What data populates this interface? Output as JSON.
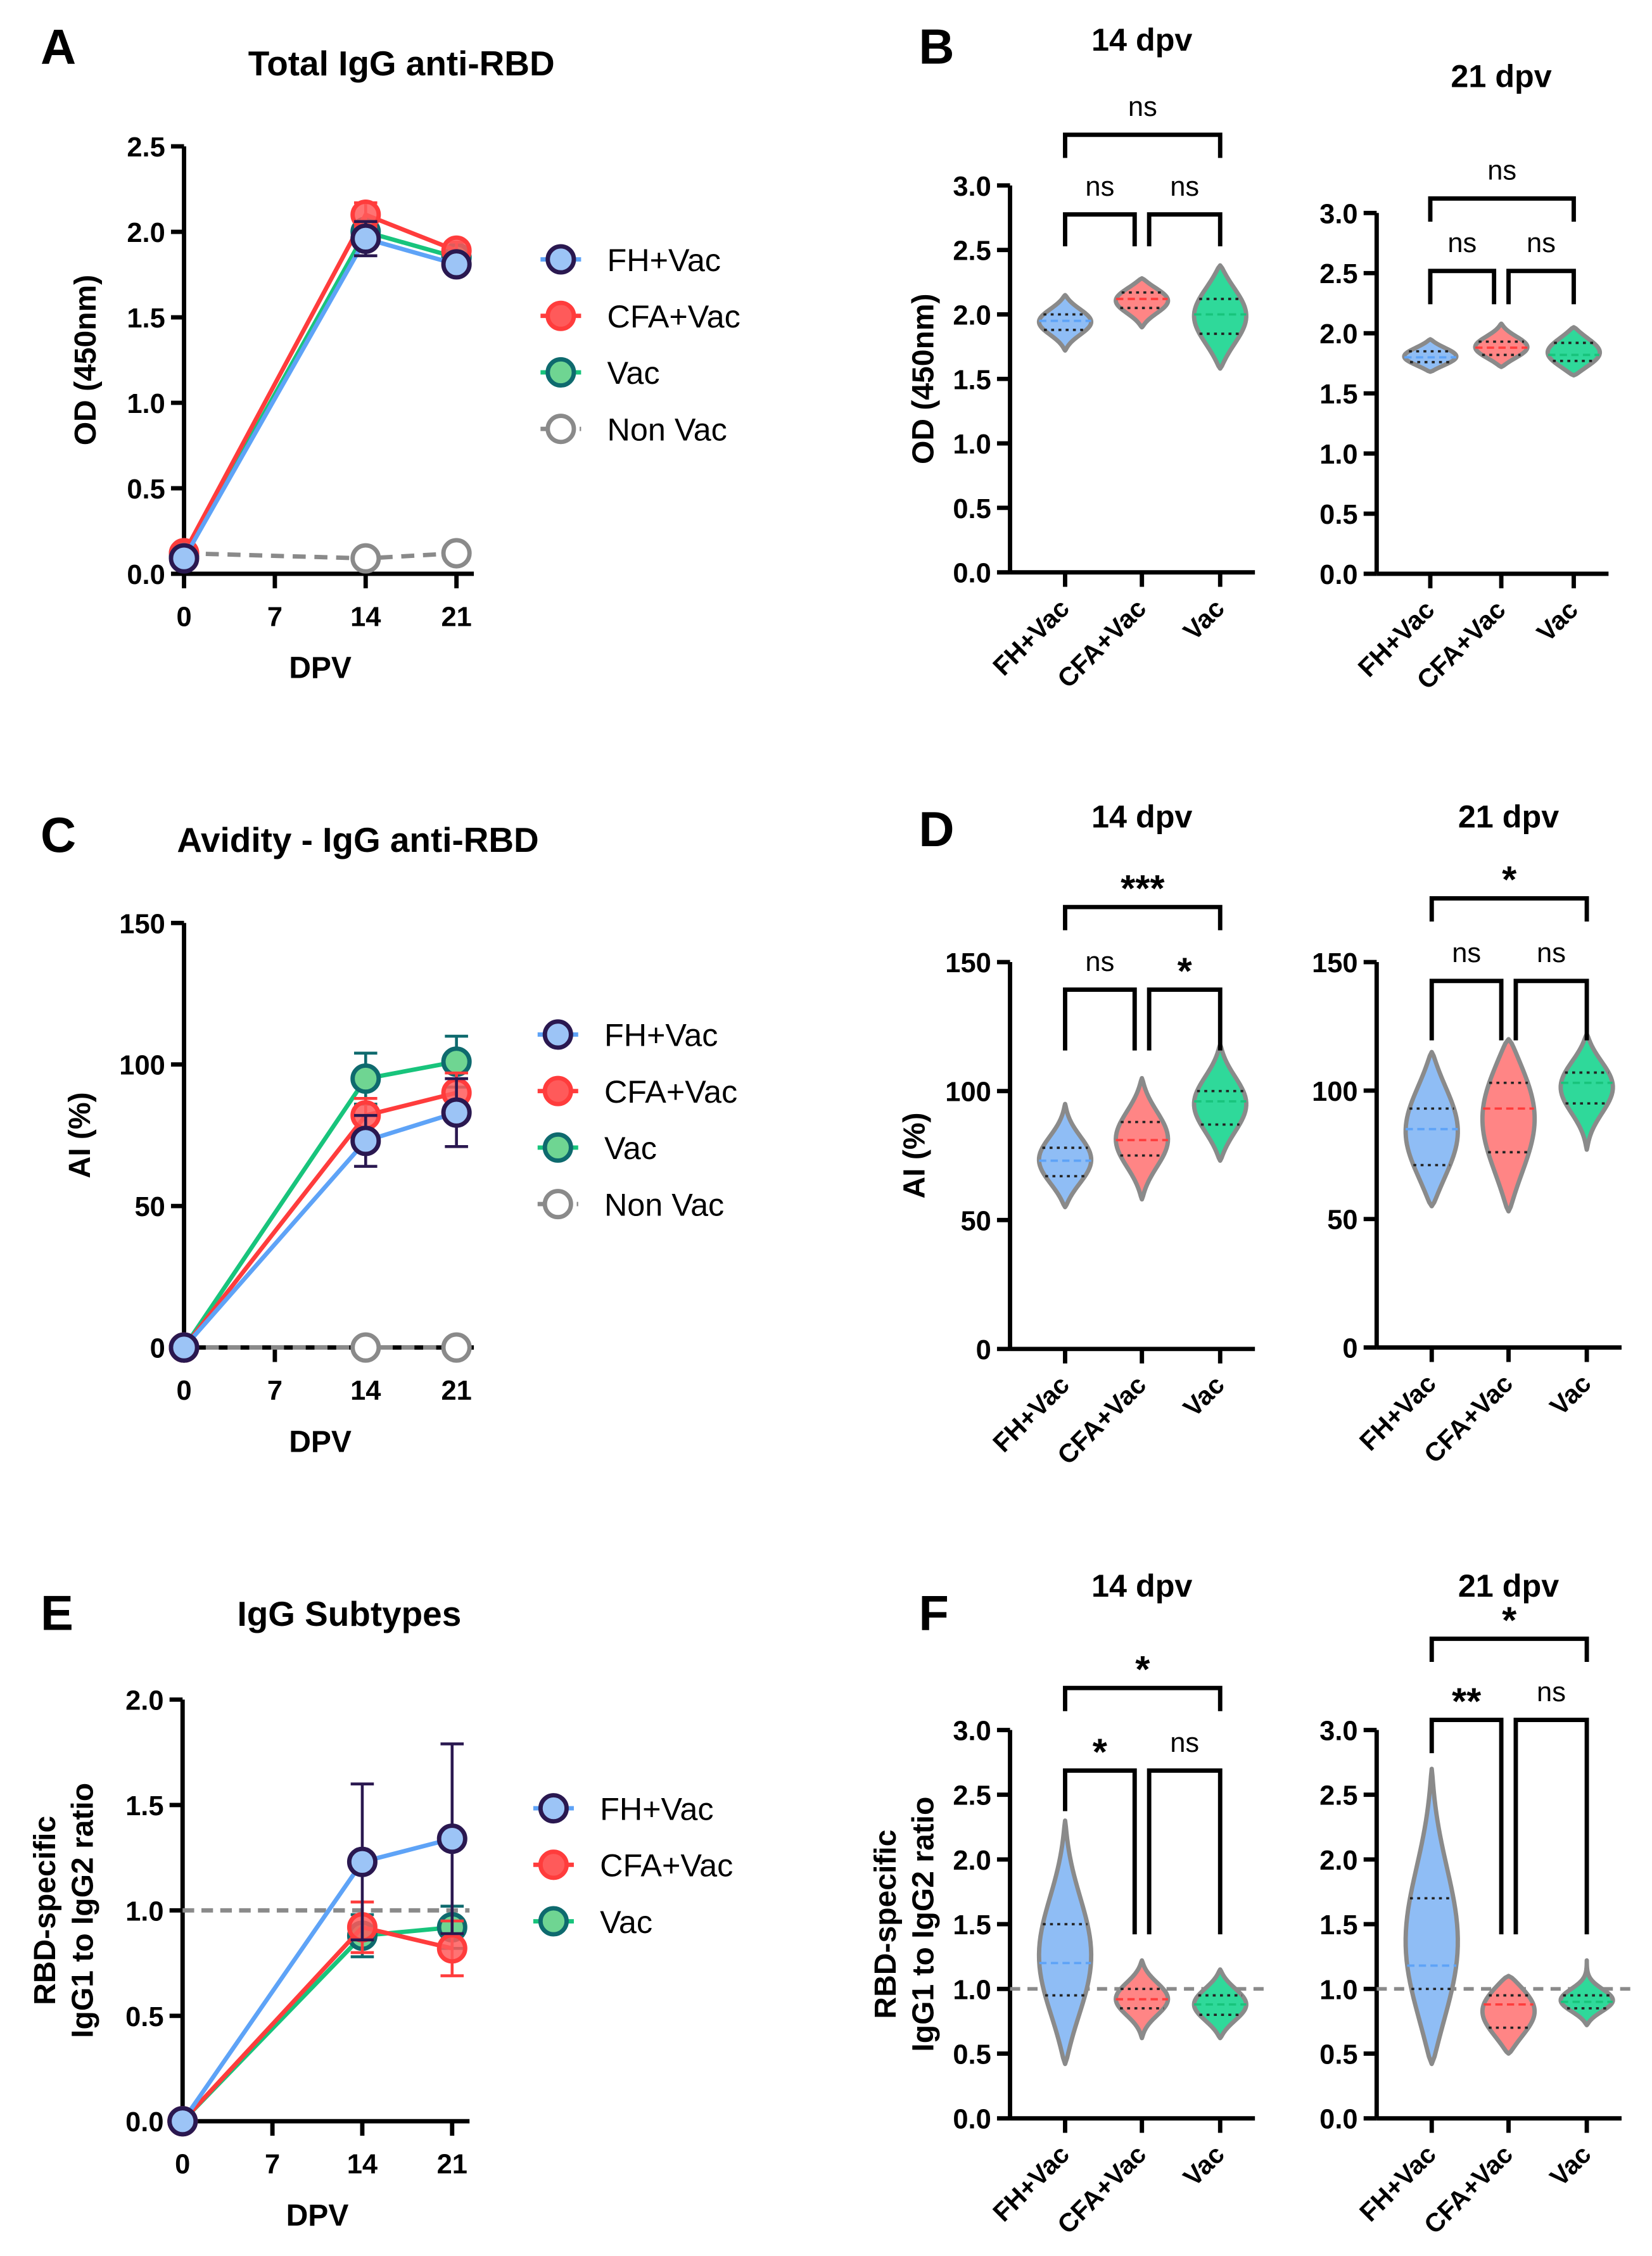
{
  "colors": {
    "FH+Vac": "#5ea3f7",
    "CFA+Vac": "#ff3c3c",
    "Vac": "#18c47c",
    "Non Vac": "#8a8a8a",
    "violin_outline": "#8a8a8a"
  },
  "chart_data": [
    {
      "panel": "A",
      "type": "line",
      "title": "Total IgG anti-RBD",
      "xlabel": "DPV",
      "ylabel": "OD (450nm)",
      "x": [
        0,
        14,
        21
      ],
      "xticks": [
        "0",
        "7",
        "14",
        "21"
      ],
      "ylim": [
        0,
        2.5
      ],
      "yticks": [
        "0.0",
        "0.5",
        "1.0",
        "1.5",
        "2.0",
        "2.5"
      ],
      "legend": "right",
      "series": [
        {
          "name": "FH+Vac",
          "values": [
            0.09,
            1.96,
            1.81
          ],
          "err": [
            0,
            0.1,
            0.04
          ]
        },
        {
          "name": "CFA+Vac",
          "values": [
            0.12,
            2.1,
            1.89
          ],
          "err": [
            0,
            0.07,
            0.05
          ]
        },
        {
          "name": "Vac",
          "values": [
            0.1,
            2.0,
            1.85
          ],
          "err": [
            0,
            0.05,
            0.04
          ]
        },
        {
          "name": "Non Vac",
          "values": [
            0.12,
            0.09,
            0.12
          ],
          "err": [
            0,
            0,
            0
          ],
          "dashed": true
        }
      ]
    },
    {
      "panel": "B",
      "type": "violin",
      "title": "14 dpv",
      "ylabel": "OD (450nm)",
      "ylim": [
        0,
        3.0
      ],
      "yticks": [
        "0.0",
        "0.5",
        "1.0",
        "1.5",
        "2.0",
        "2.5",
        "3.0"
      ],
      "categories": [
        "FH+Vac",
        "CFA+Vac",
        "Vac"
      ],
      "groups": [
        {
          "min": 1.72,
          "q1": 1.88,
          "median": 1.95,
          "q3": 2.0,
          "max": 2.15
        },
        {
          "min": 1.9,
          "q1": 2.05,
          "median": 2.12,
          "q3": 2.17,
          "max": 2.28
        },
        {
          "min": 1.58,
          "q1": 1.85,
          "median": 2.0,
          "q3": 2.12,
          "max": 2.38
        }
      ],
      "comparisons": [
        {
          "pair": [
            0,
            2
          ],
          "label": "ns"
        },
        {
          "pair": [
            0,
            1
          ],
          "label": "ns"
        },
        {
          "pair": [
            1,
            2
          ],
          "label": "ns"
        }
      ]
    },
    {
      "panel": "B",
      "type": "violin",
      "title": "21 dpv",
      "ylabel": "",
      "ylim": [
        0,
        3.0
      ],
      "yticks": [
        "0.0",
        "0.5",
        "1.0",
        "1.5",
        "2.0",
        "2.5",
        "3.0"
      ],
      "categories": [
        "FH+Vac",
        "CFA+Vac",
        "Vac"
      ],
      "groups": [
        {
          "min": 1.68,
          "q1": 1.76,
          "median": 1.8,
          "q3": 1.85,
          "max": 1.95
        },
        {
          "min": 1.72,
          "q1": 1.82,
          "median": 1.88,
          "q3": 1.93,
          "max": 2.08
        },
        {
          "min": 1.65,
          "q1": 1.77,
          "median": 1.82,
          "q3": 1.92,
          "max": 2.05
        }
      ],
      "comparisons": [
        {
          "pair": [
            0,
            2
          ],
          "label": "ns"
        },
        {
          "pair": [
            0,
            1
          ],
          "label": "ns"
        },
        {
          "pair": [
            1,
            2
          ],
          "label": "ns"
        }
      ]
    },
    {
      "panel": "C",
      "type": "line",
      "title": "Avidity - IgG anti-RBD",
      "xlabel": "DPV",
      "ylabel": "AI (%)",
      "x": [
        0,
        14,
        21
      ],
      "xticks": [
        "0",
        "7",
        "14",
        "21"
      ],
      "ylim": [
        0,
        150
      ],
      "yticks": [
        "0",
        "50",
        "100",
        "150"
      ],
      "legend": "right",
      "series": [
        {
          "name": "FH+Vac",
          "values": [
            0,
            73,
            83
          ],
          "err": [
            0,
            9,
            12
          ]
        },
        {
          "name": "CFA+Vac",
          "values": [
            0,
            82,
            90
          ],
          "err": [
            0,
            6,
            7
          ]
        },
        {
          "name": "Vac",
          "values": [
            0,
            95,
            101
          ],
          "err": [
            0,
            9,
            9
          ]
        },
        {
          "name": "Non Vac",
          "values": [
            0,
            0,
            0
          ],
          "err": [
            0,
            0,
            0
          ],
          "dashed": true
        }
      ]
    },
    {
      "panel": "D",
      "type": "violin",
      "title": "14 dpv",
      "ylabel": "AI (%)",
      "ylim": [
        0,
        150
      ],
      "yticks": [
        "0",
        "50",
        "100",
        "150"
      ],
      "categories": [
        "FH+Vac",
        "CFA+Vac",
        "Vac"
      ],
      "groups": [
        {
          "min": 55,
          "q1": 67,
          "median": 73,
          "q3": 78,
          "max": 95
        },
        {
          "min": 58,
          "q1": 75,
          "median": 81,
          "q3": 88,
          "max": 105
        },
        {
          "min": 73,
          "q1": 87,
          "median": 96,
          "q3": 100,
          "max": 118
        }
      ],
      "comparisons": [
        {
          "pair": [
            0,
            2
          ],
          "label": "***"
        },
        {
          "pair": [
            0,
            1
          ],
          "label": "ns"
        },
        {
          "pair": [
            1,
            2
          ],
          "label": "*"
        }
      ]
    },
    {
      "panel": "D",
      "type": "violin",
      "title": "21 dpv",
      "ylabel": "",
      "ylim": [
        0,
        150
      ],
      "yticks": [
        "0",
        "50",
        "100",
        "150"
      ],
      "categories": [
        "FH+Vac",
        "CFA+Vac",
        "Vac"
      ],
      "groups": [
        {
          "min": 55,
          "q1": 71,
          "median": 85,
          "q3": 93,
          "max": 115
        },
        {
          "min": 53,
          "q1": 76,
          "median": 93,
          "q3": 103,
          "max": 120
        },
        {
          "min": 77,
          "q1": 95,
          "median": 103,
          "q3": 107,
          "max": 122
        }
      ],
      "comparisons": [
        {
          "pair": [
            0,
            2
          ],
          "label": "*"
        },
        {
          "pair": [
            0,
            1
          ],
          "label": "ns"
        },
        {
          "pair": [
            1,
            2
          ],
          "label": "ns"
        }
      ]
    },
    {
      "panel": "E",
      "type": "line",
      "title": "IgG Subtypes",
      "xlabel": "DPV",
      "ylabel": [
        "RBD-specific",
        "IgG1 to IgG2 ratio"
      ],
      "x": [
        0,
        14,
        21
      ],
      "xticks": [
        "0",
        "7",
        "14",
        "21"
      ],
      "ylim": [
        0,
        2.0
      ],
      "yticks": [
        "0.0",
        "0.5",
        "1.0",
        "1.5",
        "2.0"
      ],
      "reference_line": 1.0,
      "legend": "right",
      "series": [
        {
          "name": "FH+Vac",
          "values": [
            0,
            1.23,
            1.34
          ],
          "err": [
            0,
            0.37,
            0.45
          ]
        },
        {
          "name": "CFA+Vac",
          "values": [
            0,
            0.92,
            0.82
          ],
          "err": [
            0,
            0.12,
            0.13
          ]
        },
        {
          "name": "Vac",
          "values": [
            0,
            0.88,
            0.92
          ],
          "err": [
            0,
            0.1,
            0.1
          ]
        }
      ]
    },
    {
      "panel": "F",
      "type": "violin",
      "title": "14 dpv",
      "ylabel": [
        "RBD-specific",
        "IgG1 to IgG2 ratio"
      ],
      "ylim": [
        0,
        3.0
      ],
      "yticks": [
        "0.0",
        "0.5",
        "1.0",
        "1.5",
        "2.0",
        "2.5",
        "3.0"
      ],
      "reference_line": 1.0,
      "categories": [
        "FH+Vac",
        "CFA+Vac",
        "Vac"
      ],
      "groups": [
        {
          "min": 0.42,
          "q1": 0.95,
          "median": 1.2,
          "q3": 1.5,
          "max": 2.3
        },
        {
          "min": 0.62,
          "q1": 0.85,
          "median": 0.92,
          "q3": 1.0,
          "max": 1.22
        },
        {
          "min": 0.62,
          "q1": 0.8,
          "median": 0.88,
          "q3": 0.95,
          "max": 1.15
        }
      ],
      "comparisons": [
        {
          "pair": [
            0,
            2
          ],
          "label": "*"
        },
        {
          "pair": [
            0,
            1
          ],
          "label": "*"
        },
        {
          "pair": [
            1,
            2
          ],
          "label": "ns"
        }
      ]
    },
    {
      "panel": "F",
      "type": "violin",
      "title": "21 dpv",
      "ylabel": "",
      "ylim": [
        0,
        3.0
      ],
      "yticks": [
        "0.0",
        "0.5",
        "1.0",
        "1.5",
        "2.0",
        "2.5",
        "3.0"
      ],
      "reference_line": 1.0,
      "categories": [
        "FH+Vac",
        "CFA+Vac",
        "Vac"
      ],
      "groups": [
        {
          "min": 0.42,
          "q1": 1.0,
          "median": 1.18,
          "q3": 1.7,
          "max": 2.7
        },
        {
          "min": 0.5,
          "q1": 0.7,
          "median": 0.88,
          "q3": 0.95,
          "max": 1.1
        },
        {
          "min": 0.72,
          "q1": 0.85,
          "median": 0.9,
          "q3": 0.95,
          "max": 1.22
        }
      ],
      "comparisons": [
        {
          "pair": [
            0,
            2
          ],
          "label": "*"
        },
        {
          "pair": [
            0,
            1
          ],
          "label": "**"
        },
        {
          "pair": [
            1,
            2
          ],
          "label": "ns"
        }
      ]
    }
  ]
}
